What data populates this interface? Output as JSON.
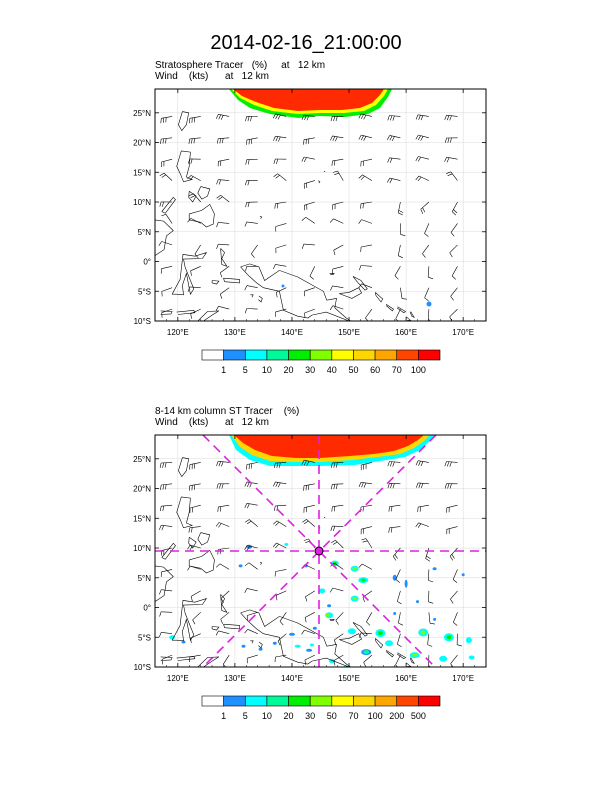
{
  "title": "2014-02-16_21:00:00",
  "panels": [
    {
      "subtitle_line1": "Stratosphere Tracer   (%)     at   12 km",
      "subtitle_line2": "Wind    (kts)      at   12 km",
      "colorbar_labels": [
        "1",
        "5",
        "10",
        "20",
        "30",
        "40",
        "50",
        "60",
        "70",
        "100"
      ],
      "colorbar_colors": [
        "#ffffff",
        "#1e90ff",
        "#00ffff",
        "#00fa9a",
        "#00ee00",
        "#7fff00",
        "#ffff00",
        "#ffd700",
        "#ffa500",
        "#ff4500",
        "#ff0000"
      ]
    },
    {
      "subtitle_line1": "8-14 km column ST Tracer    (%)",
      "subtitle_line2": "Wind    (kts)      at   12 km",
      "colorbar_labels": [
        "1",
        "5",
        "10",
        "20",
        "30",
        "50",
        "70",
        "100",
        "200",
        "500"
      ],
      "colorbar_colors": [
        "#ffffff",
        "#1e90ff",
        "#00ffff",
        "#00fa9a",
        "#00ee00",
        "#7fff00",
        "#ffff00",
        "#ffd700",
        "#ffa500",
        "#ff4500",
        "#ff0000"
      ]
    }
  ],
  "chart_data": [
    {
      "type": "heatmap",
      "title": "Stratosphere Tracer (%) at 12 km",
      "overlay": "Wind barbs (kts) at 12 km",
      "xlabel": "",
      "ylabel": "",
      "xlim": [
        116,
        174
      ],
      "ylim": [
        -10,
        29
      ],
      "x_ticks": [
        120,
        130,
        140,
        150,
        160,
        170
      ],
      "x_tick_labels": [
        "120°E",
        "130°E",
        "140°E",
        "150°E",
        "160°E",
        "170°E"
      ],
      "y_ticks": [
        -10,
        -5,
        0,
        5,
        10,
        15,
        20,
        25
      ],
      "y_tick_labels": [
        "10°S",
        "5°S",
        "0°",
        "5°N",
        "10°N",
        "15°N",
        "20°N",
        "25°N"
      ],
      "levels": [
        1,
        5,
        10,
        20,
        30,
        40,
        50,
        60,
        70,
        100
      ],
      "features": "Intense tracer (70-100%) along northern edge 129°E-163°E north of ~25°N"
    },
    {
      "type": "heatmap",
      "title": "8-14 km column ST Tracer (%)",
      "overlay": "Wind barbs (kts) at 12 km",
      "xlabel": "",
      "ylabel": "",
      "xlim": [
        116,
        174
      ],
      "ylim": [
        -10,
        29
      ],
      "x_ticks": [
        120,
        130,
        140,
        150,
        160,
        170
      ],
      "x_tick_labels": [
        "120°E",
        "130°E",
        "140°E",
        "150°E",
        "160°E",
        "170°E"
      ],
      "y_ticks": [
        -10,
        -5,
        0,
        5,
        10,
        15,
        20,
        25
      ],
      "y_tick_labels": [
        "10°S",
        "5°S",
        "0°",
        "5°N",
        "10°N",
        "15°N",
        "20°N",
        "25°N"
      ],
      "levels": [
        1,
        5,
        10,
        20,
        30,
        50,
        70,
        100,
        200,
        500
      ],
      "marker": {
        "lon": 145,
        "lat": 10
      },
      "features": "High tracer along northern edge; scattered small patches in tropics 0°-10°S"
    }
  ]
}
